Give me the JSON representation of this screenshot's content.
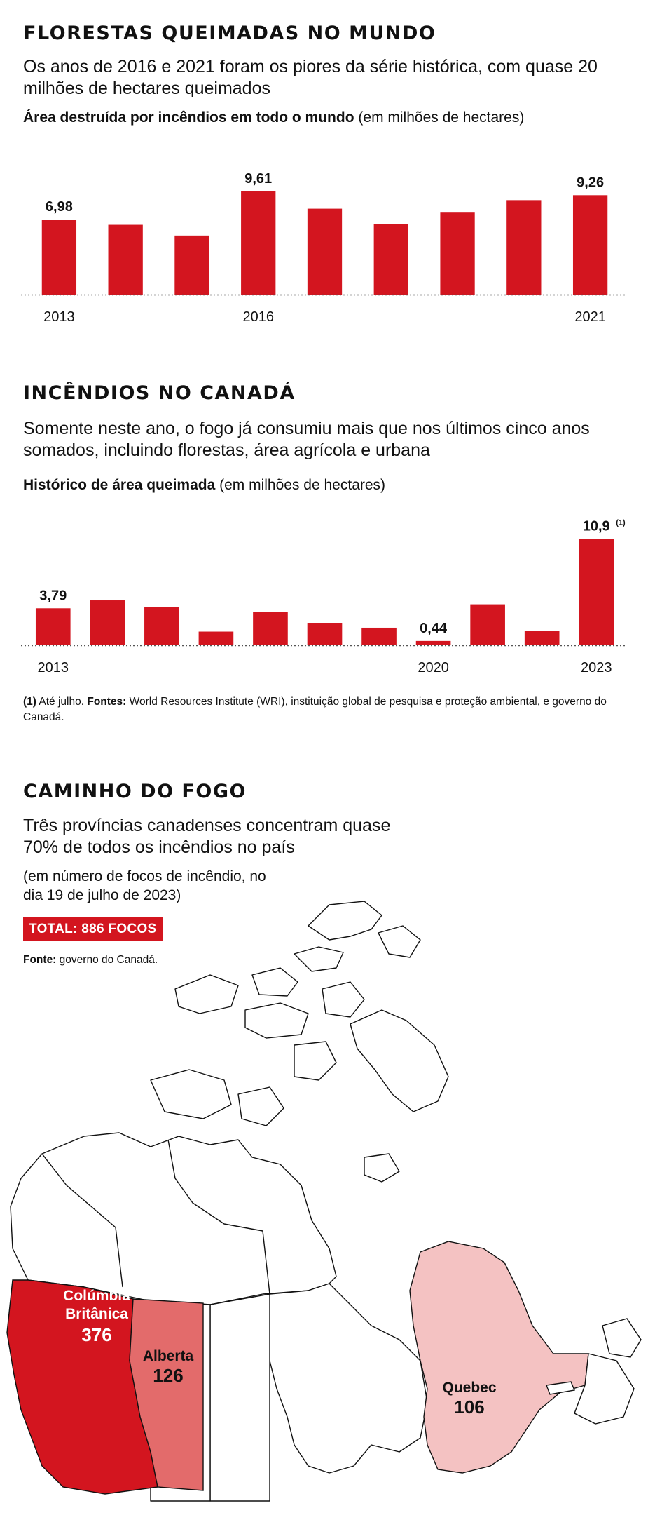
{
  "section1": {
    "title": "FLORESTAS QUEIMADAS NO MUNDO",
    "subtitle": "Os anos de 2016 e 2021 foram os piores da série histórica, com quase 20 milhões de hectares queimados",
    "chart_heading_bold": "Área destruída por incêndios em todo o mundo",
    "chart_heading_unit": "(em milhões de hectares)"
  },
  "section2": {
    "title": "INCÊNDIOS NO CANADÁ",
    "subtitle": "Somente neste ano, o fogo já consumiu mais que nos últimos cinco anos somados, incluindo florestas, área agrícola e urbana",
    "chart_heading_bold": "Histórico de área queimada",
    "chart_heading_unit": "(em milhões de hectares)",
    "note_marker": "(1)",
    "note_text": "Até julho.",
    "sources_label": "Fontes:",
    "sources_text": "World Resources Institute (WRI), instituição global de pesquisa e proteção ambiental, e governo do Canadá."
  },
  "section3": {
    "title": "CAMINHO DO FOGO",
    "subtitle": "Três províncias canadenses concentram quase 70% de todos os incêndios no país",
    "unit_note": "(em número de focos de incêndio, no dia 19 de julho de 2023)",
    "total_badge": "TOTAL: 886 FOCOS",
    "source_label": "Fonte:",
    "source_text": "governo do Canadá.",
    "provinces": [
      {
        "name_line1": "Colúmbia",
        "name_line2": "Britânica",
        "value": "376",
        "color": "#d3151f"
      },
      {
        "name_line1": "Alberta",
        "name_line2": "",
        "value": "126",
        "color": "#e36b6b"
      },
      {
        "name_line1": "Quebec",
        "name_line2": "",
        "value": "106",
        "color": "#f4c2c2"
      }
    ]
  },
  "colors": {
    "bar": "#d3151f",
    "axis": "#555555"
  },
  "chart_data": [
    {
      "type": "bar",
      "x": [
        2013,
        2014,
        2015,
        2016,
        2017,
        2018,
        2019,
        2020,
        2021
      ],
      "values": [
        6.98,
        6.5,
        5.5,
        9.61,
        8.0,
        6.6,
        7.7,
        8.8,
        9.26
      ],
      "labels": [
        "6,98",
        "",
        "",
        "9,61",
        "",
        "",
        "",
        "",
        "9,26"
      ],
      "tick_labels": [
        "2013",
        "",
        "",
        "2016",
        "",
        "",
        "",
        "",
        "2021"
      ],
      "ylim": [
        0,
        10
      ]
    },
    {
      "type": "bar",
      "x": [
        2013,
        2014,
        2015,
        2016,
        2017,
        2018,
        2019,
        2020,
        2021,
        2022,
        2023
      ],
      "values": [
        3.79,
        4.6,
        3.9,
        1.4,
        3.4,
        2.3,
        1.8,
        0.44,
        4.2,
        1.5,
        10.9
      ],
      "labels": [
        "3,79",
        "",
        "",
        "",
        "",
        "",
        "",
        "0,44",
        "",
        "",
        "10,9"
      ],
      "label_superscripts": [
        "",
        "",
        "",
        "",
        "",
        "",
        "",
        "",
        "",
        "",
        "(1)"
      ],
      "tick_labels": [
        "2013",
        "",
        "",
        "",
        "",
        "",
        "",
        "2020",
        "",
        "",
        "2023"
      ],
      "ylim": [
        0,
        11
      ]
    }
  ]
}
